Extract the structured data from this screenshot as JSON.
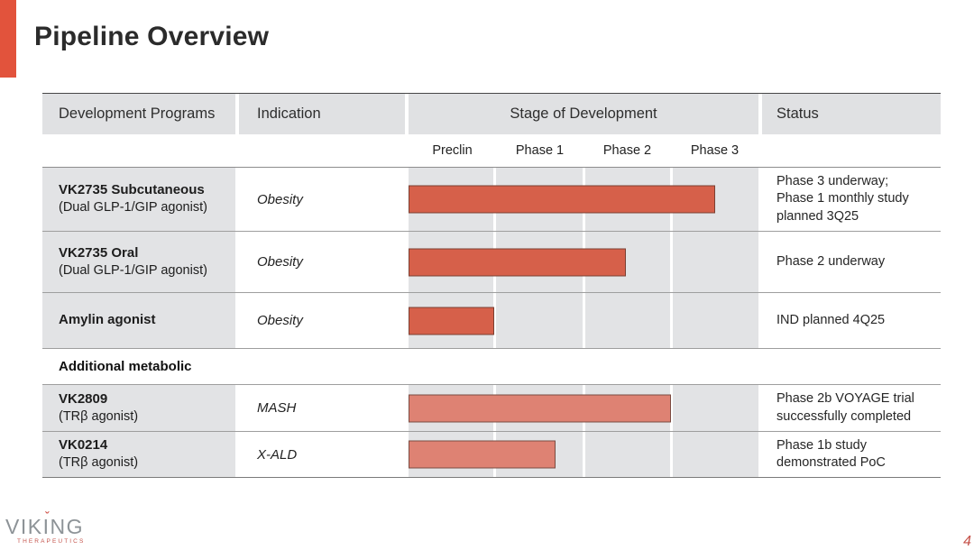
{
  "slide": {
    "title": "Pipeline Overview",
    "page_number": "4",
    "accent_color": "#e2533c"
  },
  "logo": {
    "brand": "VIKING",
    "tagline": "THERAPEUTICS"
  },
  "table": {
    "columns": {
      "programs": "Development Programs",
      "indication": "Indication",
      "stage": "Stage of Development",
      "status": "Status"
    },
    "stage_phases": [
      "Preclin",
      "Phase 1",
      "Phase 2",
      "Phase 3"
    ],
    "section_label": "Additional metabolic",
    "bar_colors": {
      "primary": "#d6604a",
      "primary_border": "#7a4033",
      "secondary": "#de8273",
      "secondary_border": "#7a4c42"
    },
    "rows": [
      {
        "program": "VK2735 Subcutaneous",
        "program_detail": "(Dual GLP-1/GIP agonist)",
        "indication": "Obesity",
        "stage_reached": "Phase 3",
        "bar_pct": 87.5,
        "bar_style": "primary",
        "status": "Phase 3 underway;\nPhase 1 monthly study\nplanned 3Q25"
      },
      {
        "program": "VK2735 Oral",
        "program_detail": "(Dual GLP-1/GIP agonist)",
        "indication": "Obesity",
        "stage_reached": "Phase 2",
        "bar_pct": 62,
        "bar_style": "primary",
        "status": "Phase 2 underway"
      },
      {
        "program": "Amylin agonist",
        "program_detail": "",
        "indication": "Obesity",
        "stage_reached": "Preclin",
        "bar_pct": 24.5,
        "bar_style": "primary",
        "status": "IND planned 4Q25"
      },
      {
        "program": "VK2809",
        "program_detail": "(TRβ agonist)",
        "indication": "MASH",
        "stage_reached": "Phase 2",
        "bar_pct": 75,
        "bar_style": "secondary",
        "status": "Phase 2b VOYAGE trial\nsuccessfully completed"
      },
      {
        "program": "VK0214",
        "program_detail": "(TRβ agonist)",
        "indication": "X-ALD",
        "stage_reached": "Phase 1",
        "bar_pct": 42,
        "bar_style": "secondary",
        "status": "Phase 1b study\ndemonstrated PoC"
      }
    ]
  }
}
